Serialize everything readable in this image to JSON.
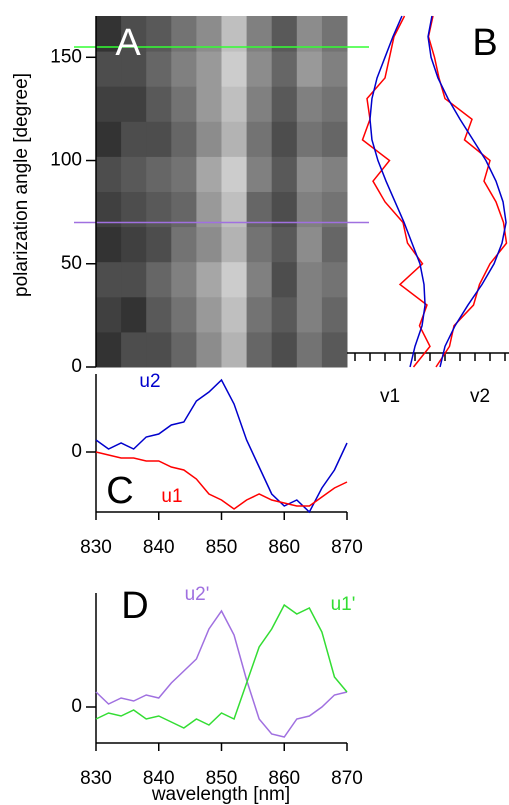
{
  "chart_data": [
    {
      "type": "heatmap",
      "label": "A",
      "ylabel": "polarization angle [degree]",
      "xlim": [
        830,
        870
      ],
      "ylim": [
        0,
        170
      ],
      "yticks": [
        0,
        50,
        100,
        150
      ],
      "x_bins": [
        830,
        834,
        838,
        842,
        846,
        850,
        854,
        858,
        862,
        866,
        870
      ],
      "y_bins": [
        0,
        17,
        34,
        51,
        68,
        85,
        102,
        119,
        136,
        153,
        170
      ],
      "z": [
        [
          0.2,
          0.3,
          0.3,
          0.4,
          0.55,
          0.7,
          0.4,
          0.3,
          0.45,
          0.35
        ],
        [
          0.25,
          0.2,
          0.35,
          0.45,
          0.6,
          0.75,
          0.45,
          0.35,
          0.5,
          0.4
        ],
        [
          0.3,
          0.3,
          0.4,
          0.5,
          0.65,
          0.8,
          0.5,
          0.3,
          0.5,
          0.45
        ],
        [
          0.2,
          0.25,
          0.3,
          0.45,
          0.55,
          0.7,
          0.45,
          0.35,
          0.55,
          0.4
        ],
        [
          0.25,
          0.3,
          0.35,
          0.4,
          0.6,
          0.75,
          0.4,
          0.3,
          0.5,
          0.45
        ],
        [
          0.3,
          0.35,
          0.4,
          0.45,
          0.65,
          0.8,
          0.5,
          0.35,
          0.55,
          0.5
        ],
        [
          0.2,
          0.3,
          0.3,
          0.4,
          0.55,
          0.7,
          0.45,
          0.3,
          0.45,
          0.4
        ],
        [
          0.25,
          0.25,
          0.35,
          0.45,
          0.6,
          0.75,
          0.5,
          0.35,
          0.5,
          0.45
        ],
        [
          0.3,
          0.3,
          0.4,
          0.5,
          0.6,
          0.8,
          0.55,
          0.4,
          0.6,
          0.5
        ],
        [
          0.2,
          0.3,
          0.35,
          0.45,
          0.55,
          0.75,
          0.5,
          0.35,
          0.55,
          0.45
        ]
      ],
      "hlines": [
        {
          "value": 155,
          "color": "#33ff33"
        },
        {
          "value": 70,
          "color": "#a070e0"
        }
      ]
    },
    {
      "type": "line",
      "orientation": "vertical",
      "label": "B",
      "y": [
        0,
        10,
        20,
        30,
        40,
        50,
        60,
        70,
        80,
        90,
        100,
        110,
        120,
        130,
        140,
        150,
        160,
        170
      ],
      "ylim": [
        0,
        170
      ],
      "xlim": [
        0,
        10.2
      ],
      "xticks": [
        0,
        1,
        2,
        3,
        4,
        5,
        6,
        7,
        8,
        9,
        10
      ],
      "axis_labels": [
        "v1",
        "v2"
      ],
      "series": [
        {
          "color": "#ff0000",
          "values": [
            3.9,
            5.0,
            4.3,
            4.8,
            3.0,
            4.5,
            3.5,
            3.2,
            2.0,
            1.2,
            2.3,
            0.5,
            1.0,
            0.8,
            2.0,
            2.3,
            2.6,
            3.3
          ]
        },
        {
          "color": "#0000cc",
          "values": [
            3.67,
            4.0,
            4.47,
            4.67,
            4.6,
            4.33,
            3.8,
            3.27,
            2.67,
            2.07,
            1.53,
            1.13,
            1.0,
            1.13,
            1.47,
            2.0,
            2.53,
            3.13
          ]
        },
        {
          "color": "#ff0000",
          "values": [
            5.4,
            6.3,
            6.6,
            7.9,
            8.3,
            9.0,
            10.1,
            9.9,
            9.4,
            8.6,
            9.0,
            7.3,
            7.8,
            6.0,
            5.6,
            5.3,
            4.9,
            5.2
          ]
        },
        {
          "color": "#0000cc",
          "values": [
            5.67,
            6.0,
            6.67,
            7.53,
            8.47,
            9.27,
            9.8,
            10.07,
            9.87,
            9.4,
            8.73,
            7.87,
            7.0,
            6.2,
            5.53,
            5.07,
            4.87,
            5.13
          ]
        }
      ]
    },
    {
      "type": "line",
      "label": "C",
      "x": [
        830,
        832,
        834,
        836,
        838,
        840,
        842,
        844,
        846,
        848,
        850,
        852,
        854,
        856,
        858,
        860,
        862,
        864,
        866,
        868,
        870
      ],
      "xlim": [
        830,
        870
      ],
      "xticks": [
        830,
        840,
        850,
        860,
        870
      ],
      "ylim": [
        -2,
        2.6
      ],
      "yticks": [
        0
      ],
      "annotations": [
        {
          "text": "u2",
          "color": "#0000cc"
        },
        {
          "text": "u1",
          "color": "#ff0000"
        }
      ],
      "series": [
        {
          "color": "#0000cc",
          "values": [
            0.4,
            0.1,
            0.3,
            0.1,
            0.5,
            0.6,
            0.9,
            1.0,
            1.7,
            2.0,
            2.4,
            1.6,
            0.4,
            -0.5,
            -1.4,
            -1.8,
            -1.6,
            -2.0,
            -1.2,
            -0.6,
            0.3
          ]
        },
        {
          "color": "#ff0000",
          "values": [
            0.0,
            -0.1,
            -0.2,
            -0.2,
            -0.3,
            -0.3,
            -0.5,
            -0.6,
            -0.9,
            -1.4,
            -1.6,
            -1.9,
            -1.6,
            -1.4,
            -1.6,
            -1.7,
            -1.8,
            -1.8,
            -1.5,
            -1.2,
            -1.0
          ]
        }
      ]
    },
    {
      "type": "line",
      "label": "D",
      "xlabel": "wavelength [nm]",
      "x": [
        830,
        832,
        834,
        836,
        838,
        840,
        842,
        844,
        846,
        848,
        850,
        852,
        854,
        856,
        858,
        860,
        862,
        864,
        866,
        868,
        870
      ],
      "xlim": [
        830,
        870
      ],
      "xticks": [
        830,
        840,
        850,
        860,
        870
      ],
      "ylim": [
        -1.2,
        3.8
      ],
      "yticks": [
        0
      ],
      "annotations": [
        {
          "text": "u2'",
          "color": "#a070e0"
        },
        {
          "text": "u1'",
          "color": "#33dd33"
        }
      ],
      "series": [
        {
          "color": "#a070e0",
          "values": [
            0.5,
            0.1,
            0.3,
            0.2,
            0.4,
            0.3,
            0.8,
            1.2,
            1.6,
            2.6,
            3.2,
            2.4,
            0.9,
            -0.4,
            -0.9,
            -1.0,
            -0.4,
            -0.3,
            0.0,
            0.4,
            0.5
          ]
        },
        {
          "color": "#33dd33",
          "values": [
            -0.4,
            -0.2,
            -0.3,
            -0.1,
            -0.4,
            -0.3,
            -0.5,
            -0.7,
            -0.4,
            -0.6,
            -0.2,
            -0.4,
            0.8,
            2.0,
            2.6,
            3.4,
            3.1,
            3.3,
            2.5,
            1.0,
            0.5
          ]
        }
      ]
    }
  ]
}
